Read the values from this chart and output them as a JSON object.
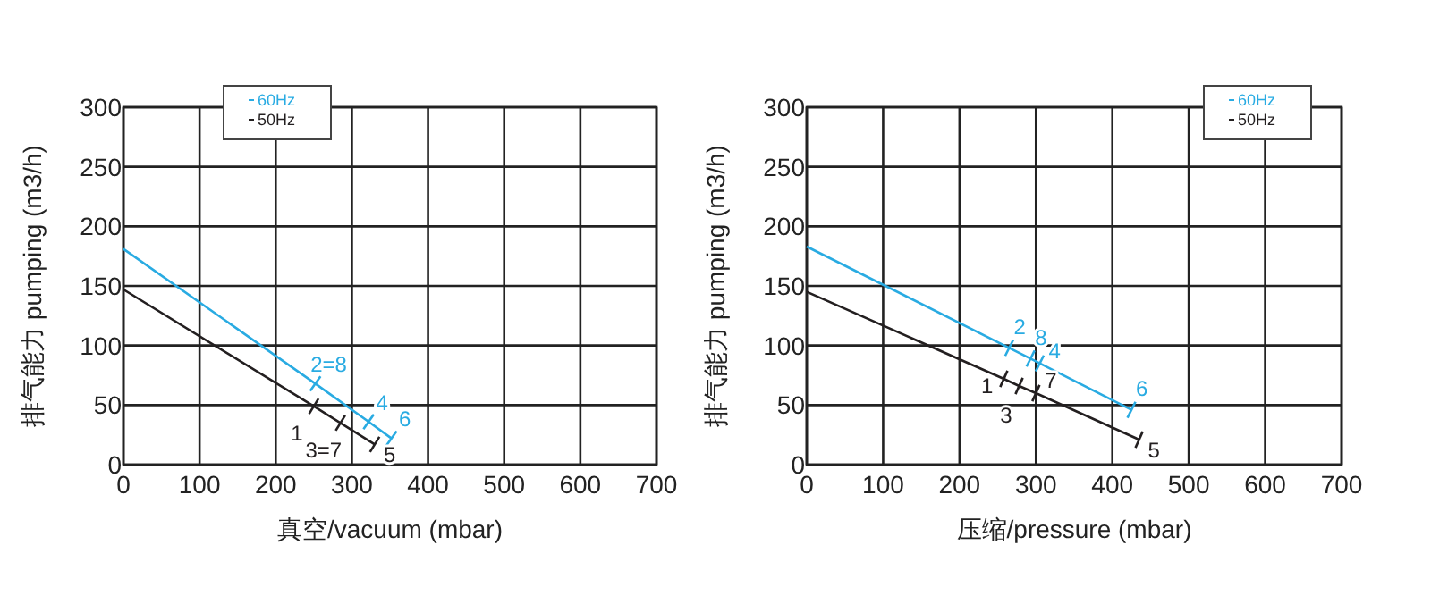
{
  "chart_data": [
    {
      "type": "line",
      "xlabel": "真空/vacuum (mbar)",
      "ylabel": "排气能力 pumping (m3/h)",
      "xlim": [
        0,
        700
      ],
      "ylim": [
        0,
        300
      ],
      "xticks": [
        0,
        100,
        200,
        300,
        400,
        500,
        600,
        700
      ],
      "yticks": [
        0,
        50,
        100,
        150,
        200,
        250,
        300
      ],
      "grid": true,
      "legend": "top left",
      "marker": "cross",
      "line_style": "solid",
      "series": [
        {
          "name": "60Hz",
          "color": "#29abe2",
          "x": [
            0,
            252,
            322,
            352
          ],
          "values": [
            181,
            68,
            36,
            22
          ]
        },
        {
          "name": "50Hz",
          "color": "#231f20",
          "x": [
            0,
            250,
            285,
            330
          ],
          "values": [
            147,
            49,
            35,
            17
          ]
        }
      ],
      "annotations": [
        {
          "text": "2=8",
          "x": 252,
          "y": 68
        },
        {
          "text": "4",
          "x": 322,
          "y": 36
        },
        {
          "text": "6",
          "x": 352,
          "y": 22
        },
        {
          "text": "1",
          "x": 250,
          "y": 49
        },
        {
          "text": "3=7",
          "x": 285,
          "y": 35
        },
        {
          "text": "5",
          "x": 330,
          "y": 17
        }
      ]
    },
    {
      "type": "line",
      "xlabel": "压缩/pressure (mbar)",
      "ylabel": "排气能力 pumping (m3/h)",
      "xlim": [
        0,
        700
      ],
      "ylim": [
        0,
        300
      ],
      "xticks": [
        0,
        100,
        200,
        300,
        400,
        500,
        600,
        700
      ],
      "yticks": [
        0,
        50,
        100,
        150,
        200,
        250,
        300
      ],
      "grid": true,
      "legend": "top right",
      "marker": "cross",
      "line_style": "solid",
      "series": [
        {
          "name": "60Hz",
          "color": "#29abe2",
          "x": [
            0,
            265,
            293,
            305,
            425
          ],
          "values": [
            183,
            98,
            89,
            85,
            46
          ]
        },
        {
          "name": "50Hz",
          "color": "#231f20",
          "x": [
            0,
            258,
            278,
            300,
            435
          ],
          "values": [
            145,
            72,
            66,
            60,
            21
          ]
        }
      ],
      "annotations": [
        {
          "text": "2",
          "x": 265,
          "y": 98
        },
        {
          "text": "8",
          "x": 293,
          "y": 89
        },
        {
          "text": "4",
          "x": 305,
          "y": 85
        },
        {
          "text": "6",
          "x": 425,
          "y": 46
        },
        {
          "text": "1",
          "x": 258,
          "y": 72
        },
        {
          "text": "3",
          "x": 278,
          "y": 66
        },
        {
          "text": "7",
          "x": 300,
          "y": 60
        },
        {
          "text": "5",
          "x": 435,
          "y": 21
        }
      ]
    }
  ]
}
